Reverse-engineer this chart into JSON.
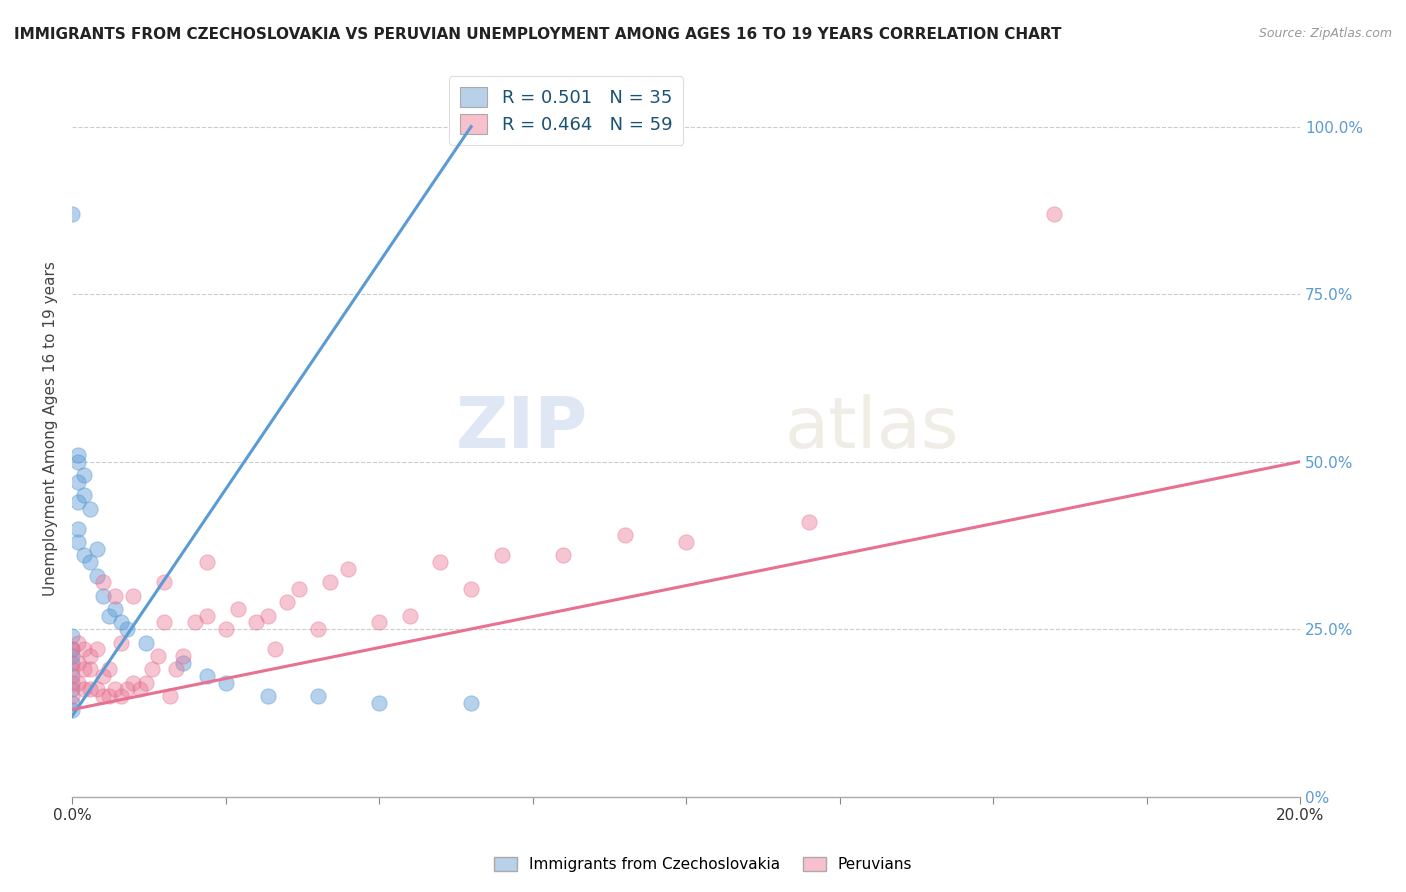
{
  "title": "IMMIGRANTS FROM CZECHOSLOVAKIA VS PERUVIAN UNEMPLOYMENT AMONG AGES 16 TO 19 YEARS CORRELATION CHART",
  "source": "Source: ZipAtlas.com",
  "ylabel": "Unemployment Among Ages 16 to 19 years",
  "legend_blue_label": "R = 0.501   N = 35",
  "legend_pink_label": "R = 0.464   N = 59",
  "legend_blue_color": "#b8d0e8",
  "legend_pink_color": "#f8c0cc",
  "scatter_blue_x": [
    0.0,
    0.0,
    0.0,
    0.0,
    0.0,
    0.0,
    0.0,
    0.0,
    0.0,
    0.001,
    0.001,
    0.001,
    0.001,
    0.001,
    0.001,
    0.002,
    0.002,
    0.002,
    0.003,
    0.003,
    0.004,
    0.004,
    0.005,
    0.006,
    0.007,
    0.008,
    0.009,
    0.012,
    0.018,
    0.022,
    0.025,
    0.032,
    0.04,
    0.05,
    0.065
  ],
  "scatter_blue_y": [
    0.87,
    0.14,
    0.16,
    0.18,
    0.2,
    0.21,
    0.22,
    0.24,
    0.13,
    0.44,
    0.47,
    0.5,
    0.51,
    0.38,
    0.4,
    0.45,
    0.48,
    0.36,
    0.35,
    0.43,
    0.33,
    0.37,
    0.3,
    0.27,
    0.28,
    0.26,
    0.25,
    0.23,
    0.2,
    0.18,
    0.17,
    0.15,
    0.15,
    0.14,
    0.14
  ],
  "scatter_pink_x": [
    0.0,
    0.0,
    0.0,
    0.0,
    0.001,
    0.001,
    0.001,
    0.002,
    0.002,
    0.002,
    0.003,
    0.003,
    0.003,
    0.004,
    0.004,
    0.005,
    0.005,
    0.005,
    0.006,
    0.006,
    0.007,
    0.007,
    0.008,
    0.008,
    0.009,
    0.01,
    0.01,
    0.011,
    0.012,
    0.013,
    0.014,
    0.015,
    0.015,
    0.016,
    0.017,
    0.018,
    0.02,
    0.022,
    0.022,
    0.025,
    0.027,
    0.03,
    0.032,
    0.033,
    0.035,
    0.037,
    0.04,
    0.042,
    0.045,
    0.05,
    0.055,
    0.06,
    0.065,
    0.07,
    0.08,
    0.09,
    0.1,
    0.12,
    0.16
  ],
  "scatter_pink_y": [
    0.15,
    0.17,
    0.19,
    0.22,
    0.17,
    0.2,
    0.23,
    0.16,
    0.19,
    0.22,
    0.16,
    0.19,
    0.21,
    0.16,
    0.22,
    0.15,
    0.18,
    0.32,
    0.15,
    0.19,
    0.16,
    0.3,
    0.15,
    0.23,
    0.16,
    0.17,
    0.3,
    0.16,
    0.17,
    0.19,
    0.21,
    0.26,
    0.32,
    0.15,
    0.19,
    0.21,
    0.26,
    0.27,
    0.35,
    0.25,
    0.28,
    0.26,
    0.27,
    0.22,
    0.29,
    0.31,
    0.25,
    0.32,
    0.34,
    0.26,
    0.27,
    0.35,
    0.31,
    0.36,
    0.36,
    0.39,
    0.38,
    0.41,
    0.87
  ],
  "blue_line_x": [
    0.0,
    0.065
  ],
  "blue_line_y": [
    0.12,
    1.0
  ],
  "pink_line_x": [
    0.0,
    0.2
  ],
  "pink_line_y": [
    0.13,
    0.5
  ],
  "blue_color": "#5b9bd5",
  "pink_color": "#e87090",
  "xlim": [
    0.0,
    0.2
  ],
  "ylim": [
    0.0,
    1.1
  ],
  "ytick_vals": [
    0.0,
    0.25,
    0.5,
    0.75,
    1.0
  ],
  "ytick_labels": [
    "0%",
    "25.0%",
    "50.0%",
    "75.0%",
    "100.0%"
  ],
  "xtick_vals": [
    0.0,
    0.025,
    0.05,
    0.075,
    0.1,
    0.125,
    0.15,
    0.175,
    0.2
  ],
  "watermark_zip": "ZIP",
  "watermark_atlas": "atlas",
  "background_color": "#ffffff"
}
